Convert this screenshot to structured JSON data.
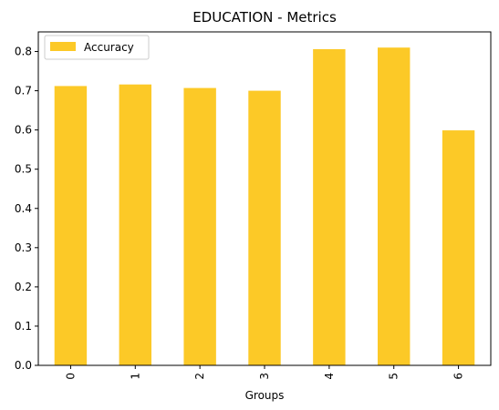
{
  "chart_data": {
    "type": "bar",
    "title": "EDUCATION - Metrics",
    "xlabel": "Groups",
    "ylabel": "",
    "categories": [
      "0",
      "1",
      "2",
      "3",
      "4",
      "5",
      "6"
    ],
    "series": [
      {
        "name": "Accuracy",
        "values": [
          0.712,
          0.716,
          0.707,
          0.7,
          0.806,
          0.81,
          0.599
        ],
        "color": "#fcc927"
      }
    ],
    "ylim": [
      0,
      0.85
    ],
    "yticks": [
      0.0,
      0.1,
      0.2,
      0.3,
      0.4,
      0.5,
      0.6,
      0.7,
      0.8
    ],
    "ytick_labels": [
      "0.0",
      "0.1",
      "0.2",
      "0.3",
      "0.4",
      "0.5",
      "0.6",
      "0.7",
      "0.8"
    ],
    "grid": false,
    "legend_position": "top-left"
  }
}
